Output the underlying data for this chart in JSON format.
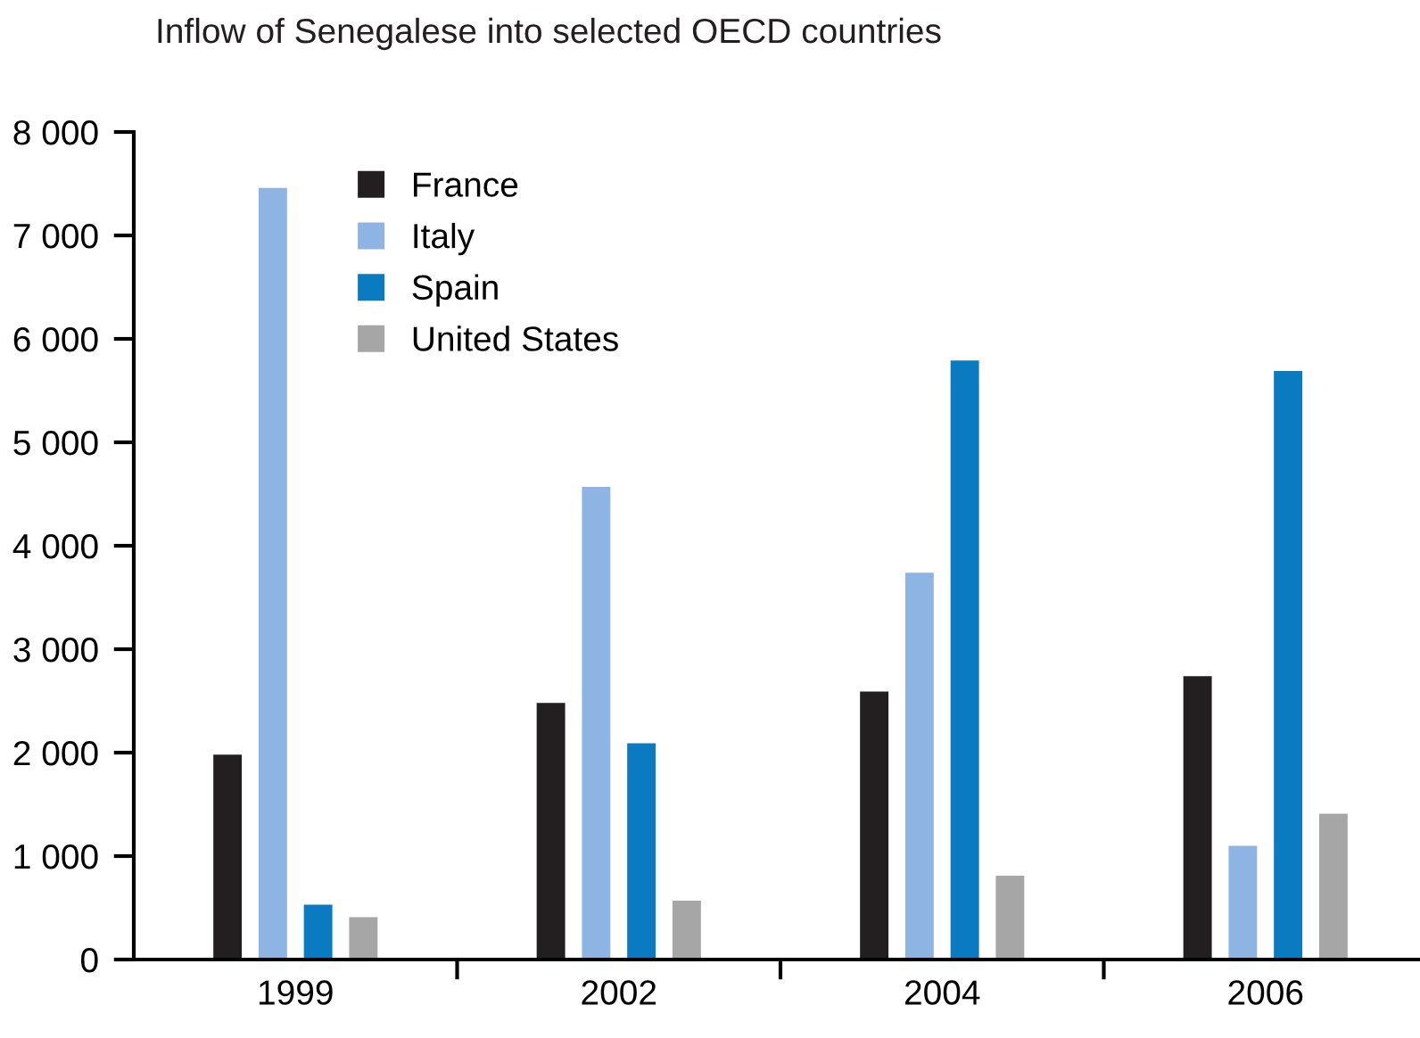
{
  "chart_data": {
    "type": "bar",
    "title": "Inflow of Senegalese into selected OECD countries",
    "categories": [
      "1999",
      "2002",
      "2004",
      "2006"
    ],
    "series": [
      {
        "name": "France",
        "color": "#231f20",
        "values": [
          1980,
          2480,
          2590,
          2740
        ]
      },
      {
        "name": "Italy",
        "color": "#8eb4e3",
        "values": [
          7460,
          4570,
          3740,
          1100
        ]
      },
      {
        "name": "Spain",
        "color": "#0a7bc1",
        "values": [
          530,
          2090,
          5790,
          5690
        ]
      },
      {
        "name": "United States",
        "color": "#a6a6a6",
        "values": [
          410,
          570,
          810,
          1410
        ]
      }
    ],
    "ylim": [
      0,
      8000
    ],
    "yticks": [
      {
        "value": 0,
        "label": "0"
      },
      {
        "value": 1000,
        "label": "1 000"
      },
      {
        "value": 2000,
        "label": "2 000"
      },
      {
        "value": 3000,
        "label": "3 000"
      },
      {
        "value": 4000,
        "label": "4 000"
      },
      {
        "value": 5000,
        "label": "5 000"
      },
      {
        "value": 6000,
        "label": "6 000"
      },
      {
        "value": 7000,
        "label": "7 000"
      },
      {
        "value": 8000,
        "label": "8 000"
      }
    ],
    "grid": false,
    "legend": "top left"
  }
}
